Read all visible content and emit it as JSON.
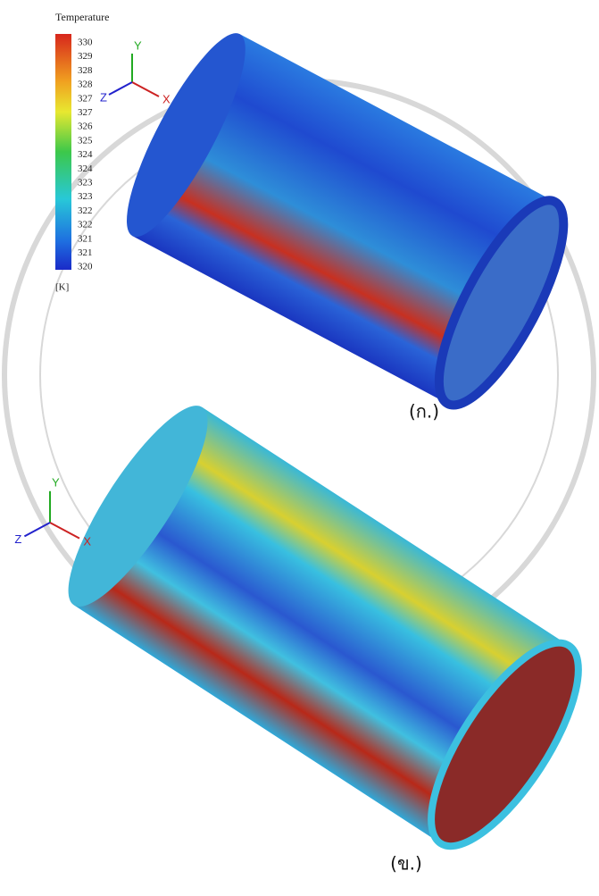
{
  "figure": {
    "legend": {
      "title": "Temperature",
      "labels": [
        "330",
        "329",
        "328",
        "328",
        "327",
        "327",
        "326",
        "325",
        "324",
        "324",
        "323",
        "323",
        "322",
        "322",
        "321",
        "321",
        "320"
      ],
      "unit": "[K]"
    },
    "panels": [
      {
        "axes": {
          "y": "Y",
          "x": "X",
          "z": "Z"
        },
        "caption": "(ก.)"
      },
      {
        "axes": {
          "y": "Y",
          "x": "X",
          "z": "Z"
        },
        "caption": "(ข.)"
      }
    ]
  }
}
